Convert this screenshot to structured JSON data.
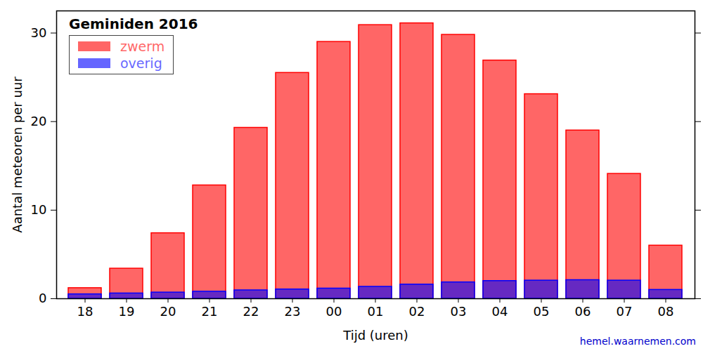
{
  "chart_data": {
    "type": "bar",
    "title": "Geminiden 2016",
    "x_label": "Tijd (uren)",
    "y_label": "Aantal meteoren per uur",
    "categories": [
      "18",
      "19",
      "20",
      "21",
      "22",
      "23",
      "00",
      "01",
      "02",
      "03",
      "04",
      "05",
      "06",
      "07",
      "08"
    ],
    "series": [
      {
        "name": "zwerm",
        "color": "#ff0000",
        "values": [
          1.2,
          3.4,
          7.4,
          12.8,
          19.3,
          25.5,
          29.0,
          30.9,
          31.1,
          29.8,
          26.9,
          23.1,
          19.0,
          14.1,
          6.0
        ]
      },
      {
        "name": "overig",
        "color": "#0000ff",
        "values": [
          0.5,
          0.6,
          0.7,
          0.8,
          0.95,
          1.05,
          1.15,
          1.35,
          1.6,
          1.85,
          2.0,
          2.05,
          2.1,
          2.05,
          1.0
        ]
      }
    ],
    "stacked": false,
    "ylim": [
      0,
      32.5
    ],
    "yticks": [
      0,
      10,
      20,
      30
    ],
    "grid": false,
    "legend": "upper left",
    "annotations": [
      "hemel.waarnemen.com"
    ]
  }
}
